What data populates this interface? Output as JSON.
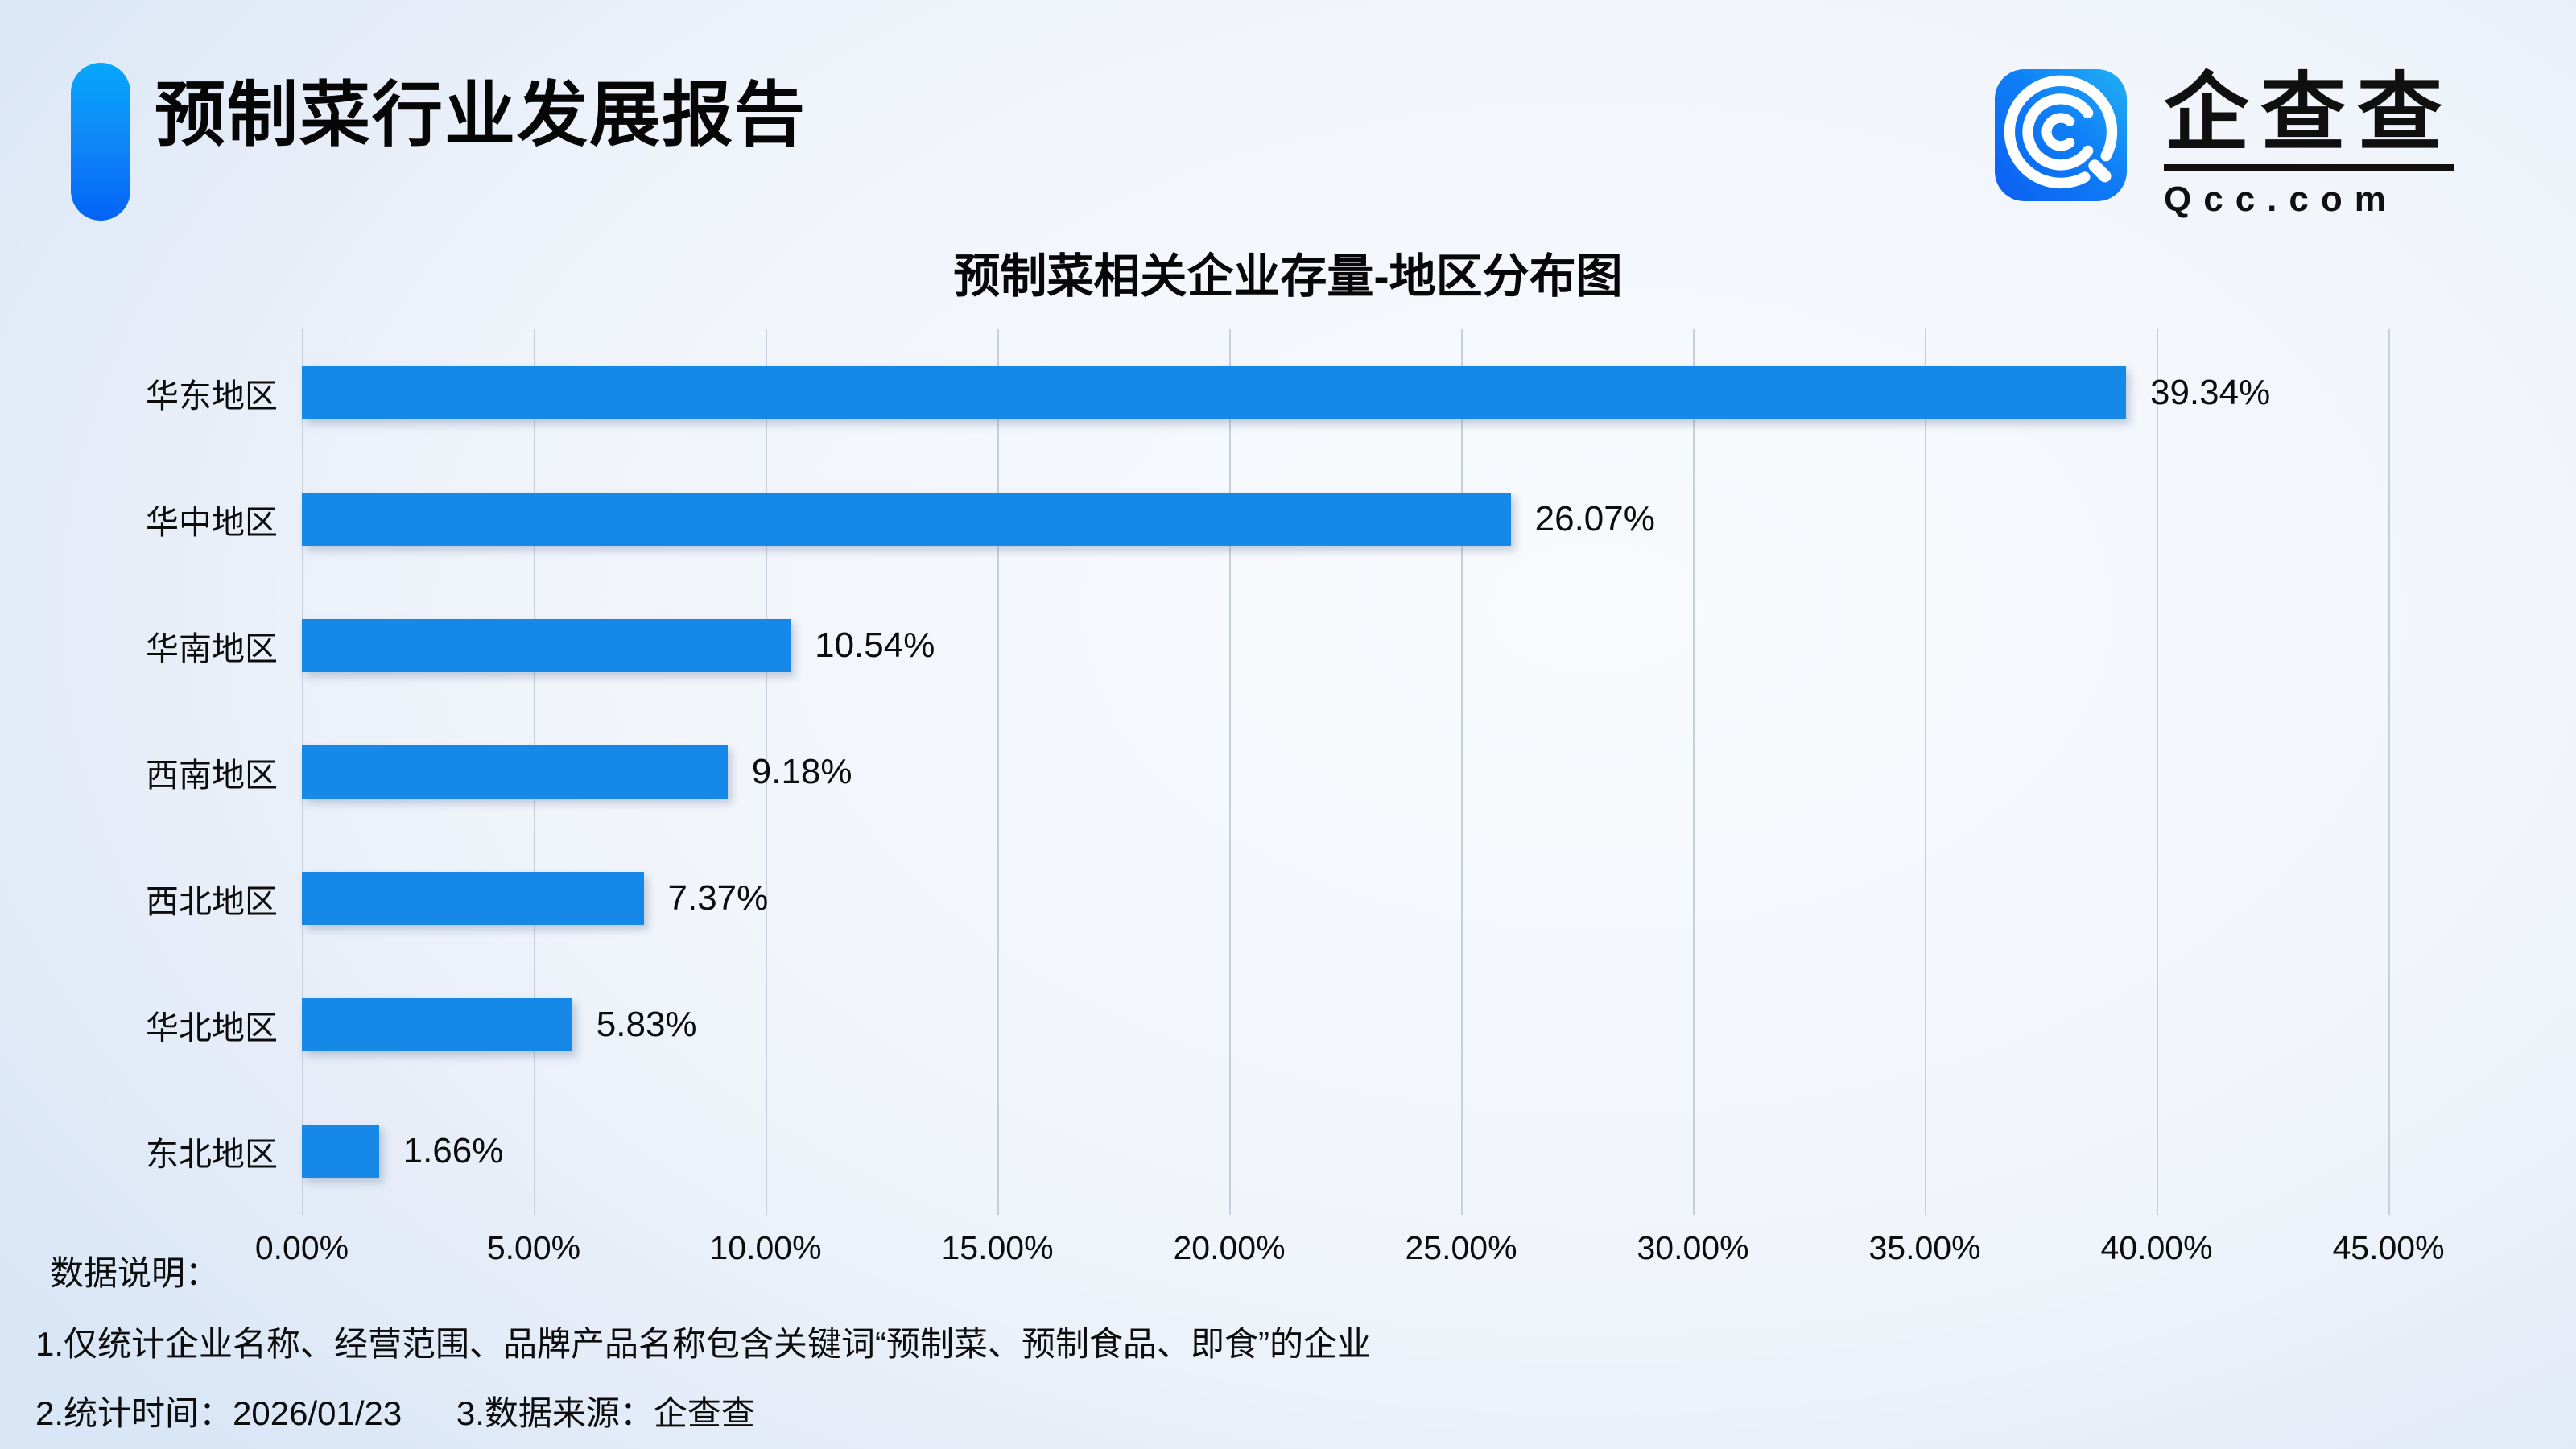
{
  "header": {
    "report_title": "预制菜行业发展报告",
    "logo": {
      "brand_cn": "企查查",
      "brand_en": "Qcc.com"
    }
  },
  "chart_data": {
    "type": "bar",
    "orientation": "horizontal",
    "title": "预制菜相关企业存量-地区分布图",
    "categories": [
      "华东地区",
      "华中地区",
      "华南地区",
      "西南地区",
      "西北地区",
      "华北地区",
      "东北地区"
    ],
    "values": [
      39.34,
      26.07,
      10.54,
      9.18,
      7.37,
      5.83,
      1.66
    ],
    "value_labels": [
      "39.34%",
      "26.07%",
      "10.54%",
      "9.18%",
      "7.37%",
      "5.83%",
      "1.66%"
    ],
    "xlabel": "",
    "ylabel": "",
    "x_axis": {
      "min": 0,
      "max": 45,
      "step": 5,
      "ticks": [
        "0.00%",
        "5.00%",
        "10.00%",
        "15.00%",
        "20.00%",
        "25.00%",
        "30.00%",
        "35.00%",
        "40.00%",
        "45.00%"
      ]
    },
    "grid": true,
    "legend": false,
    "bar_color": "#1688e8",
    "gridline_color": "#c9cfda"
  },
  "footnotes": {
    "label": "数据说明：",
    "note1": "1.仅统计企业名称、经营范围、品牌产品名称包含关键词“预制菜、预制食品、即食”的企业",
    "note2_time": "2.统计时间：2026/01/23",
    "note2_source": "3.数据来源：企查查"
  },
  "colors": {
    "accent_blue": "#1688e8",
    "title_accent_top": "#06a7fb",
    "title_accent_bottom": "#0263f7",
    "text": "#0c0c0c"
  }
}
